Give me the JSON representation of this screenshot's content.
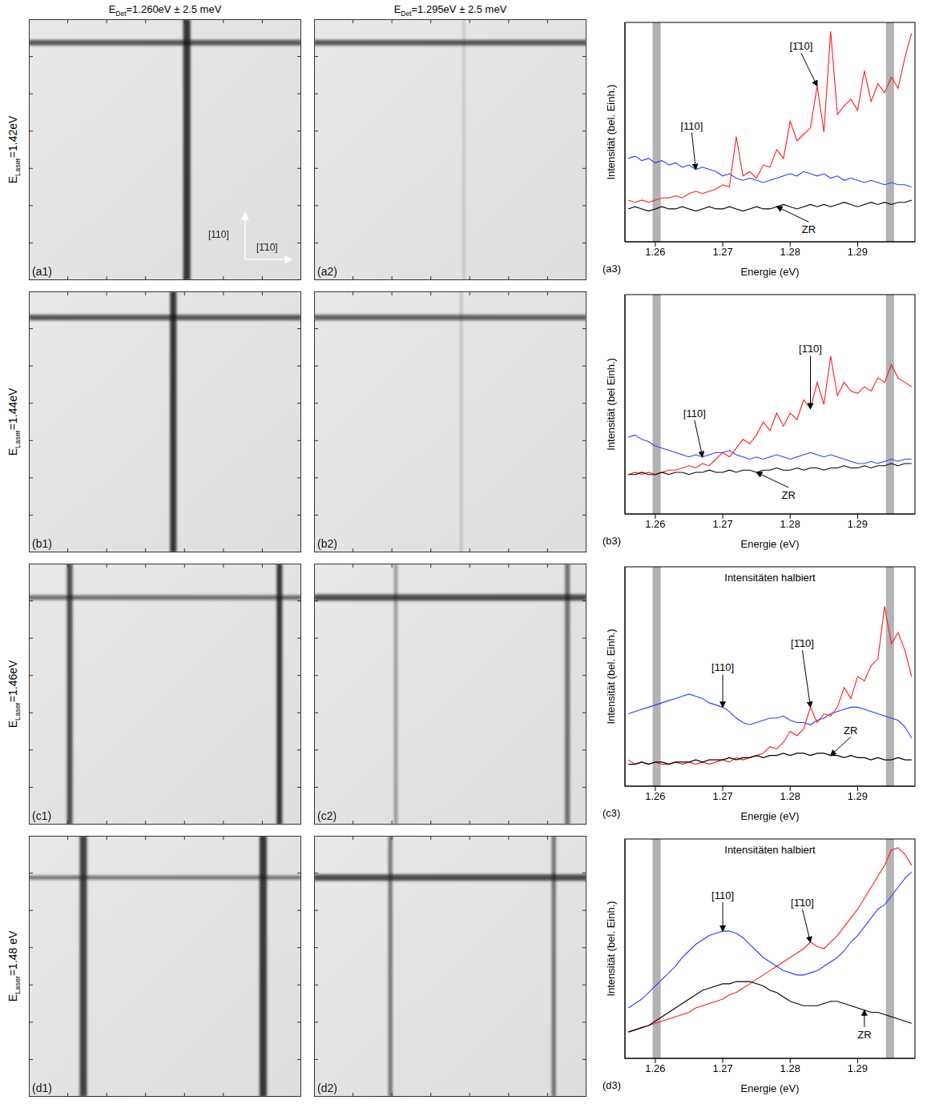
{
  "column_titles": [
    {
      "main": "E",
      "sub": "Det",
      "rest": "=1.260eV ± 2.5 meV"
    },
    {
      "main": "E",
      "sub": "Det",
      "rest": "=1.295eV ± 2.5 meV"
    }
  ],
  "row_titles": [
    {
      "main": "E",
      "sub": "Laser",
      "rest": "=1.42eV"
    },
    {
      "main": "E",
      "sub": "Laser",
      "rest": "=1.44eV"
    },
    {
      "main": "E",
      "sub": "Laser",
      "rest": "=1.46eV"
    },
    {
      "main": "E",
      "sub": "Laser",
      "rest": "=1.48 eV"
    }
  ],
  "image_panels": [
    [
      "(a1)",
      "(a2)"
    ],
    [
      "(b1)",
      "(b2)"
    ],
    [
      "(c1)",
      "(c2)"
    ],
    [
      "(d1)",
      "(d2)"
    ]
  ],
  "image_axes": {
    "vertical": "[110]",
    "horizontal": "[1̄10]"
  },
  "chart_data": [
    {
      "type": "line",
      "panel": "(a3)",
      "x_label": "Energie (eV)",
      "y_label": "Intensität (bel. Einh.)",
      "xlim": [
        1.2555,
        1.2985
      ],
      "xticks": [
        1.26,
        1.27,
        1.28,
        1.29
      ],
      "ylim": [
        0,
        10
      ],
      "tick_labels": "x",
      "highlight_bands": [
        [
          1.2596,
          1.2608
        ],
        [
          1.2942,
          1.2954
        ]
      ],
      "x": [
        1.256,
        1.257,
        1.258,
        1.259,
        1.26,
        1.261,
        1.262,
        1.263,
        1.264,
        1.265,
        1.266,
        1.267,
        1.268,
        1.269,
        1.27,
        1.271,
        1.272,
        1.273,
        1.274,
        1.275,
        1.276,
        1.277,
        1.278,
        1.279,
        1.28,
        1.281,
        1.282,
        1.283,
        1.284,
        1.285,
        1.286,
        1.287,
        1.288,
        1.289,
        1.29,
        1.291,
        1.292,
        1.293,
        1.294,
        1.295,
        1.296,
        1.297,
        1.298
      ],
      "series": [
        {
          "name": "[110]",
          "color": "#2b3cff",
          "values": [
            3.8,
            3.9,
            3.7,
            3.8,
            3.6,
            3.7,
            3.5,
            3.6,
            3.4,
            3.5,
            3.3,
            3.4,
            3.3,
            3.2,
            3.0,
            3.1,
            2.9,
            2.8,
            2.9,
            2.8,
            2.7,
            2.8,
            2.9,
            3.0,
            3.1,
            3.0,
            3.2,
            3.1,
            3.0,
            3.1,
            2.9,
            3.0,
            2.8,
            2.9,
            2.8,
            2.7,
            2.8,
            2.7,
            2.6,
            2.7,
            2.6,
            2.6,
            2.5
          ]
        },
        {
          "name": "[1̄10]",
          "color": "#ff1a1a",
          "values": [
            1.9,
            1.8,
            1.9,
            1.8,
            1.9,
            2.0,
            2.0,
            2.1,
            2.0,
            2.2,
            2.3,
            2.2,
            2.3,
            2.4,
            2.6,
            2.5,
            4.8,
            3.0,
            3.2,
            2.9,
            3.5,
            3.4,
            4.2,
            3.8,
            5.5,
            4.6,
            4.9,
            5.2,
            7.1,
            5.0,
            9.6,
            5.8,
            6.2,
            6.5,
            6.0,
            7.8,
            6.4,
            7.2,
            6.8,
            7.5,
            7.0,
            8.4,
            9.5
          ]
        },
        {
          "name": "ZR",
          "color": "#000000",
          "values": [
            1.5,
            1.6,
            1.5,
            1.4,
            1.5,
            1.6,
            1.5,
            1.5,
            1.6,
            1.5,
            1.4,
            1.5,
            1.6,
            1.5,
            1.5,
            1.6,
            1.5,
            1.4,
            1.5,
            1.6,
            1.5,
            1.5,
            1.6,
            1.7,
            1.6,
            1.5,
            1.6,
            1.7,
            1.6,
            1.7,
            1.6,
            1.7,
            1.8,
            1.7,
            1.6,
            1.7,
            1.8,
            1.7,
            1.8,
            1.7,
            1.8,
            1.8,
            1.9
          ]
        }
      ]
    },
    {
      "type": "line",
      "panel": "(b3)",
      "x_label": "Energie (eV)",
      "y_label": "Intensität (bel Einh.)",
      "xlim": [
        1.2555,
        1.2985
      ],
      "xticks": [
        1.26,
        1.27,
        1.28,
        1.29
      ],
      "ylim": [
        0,
        10
      ],
      "tick_labels": "x",
      "highlight_bands": [
        [
          1.2596,
          1.2608
        ],
        [
          1.2942,
          1.2954
        ]
      ],
      "x": [
        1.256,
        1.257,
        1.258,
        1.259,
        1.26,
        1.261,
        1.262,
        1.263,
        1.264,
        1.265,
        1.266,
        1.267,
        1.268,
        1.269,
        1.27,
        1.271,
        1.272,
        1.273,
        1.274,
        1.275,
        1.276,
        1.277,
        1.278,
        1.279,
        1.28,
        1.281,
        1.282,
        1.283,
        1.284,
        1.285,
        1.286,
        1.287,
        1.288,
        1.289,
        1.29,
        1.291,
        1.292,
        1.293,
        1.294,
        1.295,
        1.296,
        1.297,
        1.298
      ],
      "series": [
        {
          "name": "[110]",
          "color": "#2b3cff",
          "values": [
            3.5,
            3.6,
            3.4,
            3.3,
            3.1,
            3.0,
            2.9,
            2.8,
            2.7,
            2.6,
            2.7,
            2.6,
            2.7,
            2.8,
            2.8,
            2.9,
            2.7,
            2.6,
            2.5,
            2.6,
            2.5,
            2.6,
            2.7,
            2.6,
            2.5,
            2.6,
            2.7,
            2.8,
            2.7,
            2.6,
            2.7,
            2.6,
            2.5,
            2.4,
            2.3,
            2.3,
            2.4,
            2.3,
            2.4,
            2.5,
            2.4,
            2.5,
            2.5
          ]
        },
        {
          "name": "[1̄10]",
          "color": "#ff1a1a",
          "values": [
            1.8,
            1.9,
            1.8,
            1.9,
            1.8,
            1.9,
            2.0,
            2.0,
            2.1,
            2.2,
            2.1,
            2.3,
            2.2,
            2.5,
            2.8,
            2.6,
            3.0,
            3.4,
            3.2,
            3.6,
            4.2,
            3.8,
            4.6,
            4.0,
            4.6,
            4.3,
            5.2,
            4.8,
            6.0,
            5.0,
            7.2,
            5.4,
            6.0,
            5.6,
            5.5,
            5.8,
            5.6,
            6.2,
            6.0,
            6.8,
            6.2,
            6.0,
            5.8
          ]
        },
        {
          "name": "ZR",
          "color": "#000000",
          "values": [
            1.8,
            1.8,
            1.9,
            1.8,
            1.8,
            1.9,
            1.8,
            1.9,
            1.9,
            1.8,
            1.9,
            1.9,
            2.0,
            1.9,
            1.9,
            2.0,
            1.9,
            2.0,
            2.0,
            1.9,
            2.0,
            2.0,
            2.1,
            2.0,
            2.0,
            2.1,
            2.0,
            2.1,
            2.1,
            2.0,
            2.1,
            2.1,
            2.2,
            2.1,
            2.1,
            2.2,
            2.1,
            2.2,
            2.2,
            2.3,
            2.2,
            2.3,
            2.3
          ]
        }
      ]
    },
    {
      "type": "line",
      "panel": "(c3)",
      "title": "Intensitäten halbiert",
      "x_label": "Energie (eV)",
      "y_label": "Intensität (bel. Einh.)",
      "xlim": [
        1.2555,
        1.2985
      ],
      "xticks": [
        1.26,
        1.27,
        1.28,
        1.29
      ],
      "ylim": [
        0,
        10
      ],
      "tick_labels": "x",
      "highlight_bands": [
        [
          1.2596,
          1.2608
        ],
        [
          1.2942,
          1.2954
        ]
      ],
      "x": [
        1.256,
        1.257,
        1.258,
        1.259,
        1.26,
        1.261,
        1.262,
        1.263,
        1.264,
        1.265,
        1.266,
        1.267,
        1.268,
        1.269,
        1.27,
        1.271,
        1.272,
        1.273,
        1.274,
        1.275,
        1.276,
        1.277,
        1.278,
        1.279,
        1.28,
        1.281,
        1.282,
        1.283,
        1.284,
        1.285,
        1.286,
        1.287,
        1.288,
        1.289,
        1.29,
        1.291,
        1.292,
        1.293,
        1.294,
        1.295,
        1.296,
        1.297,
        1.298
      ],
      "series": [
        {
          "name": "[110]",
          "color": "#2b3cff",
          "values": [
            3.3,
            3.4,
            3.5,
            3.6,
            3.7,
            3.8,
            3.9,
            4.0,
            4.1,
            4.2,
            4.1,
            4.0,
            3.8,
            3.7,
            3.6,
            3.4,
            3.1,
            2.9,
            2.8,
            2.9,
            3.0,
            3.1,
            3.1,
            3.2,
            3.0,
            2.9,
            2.9,
            2.8,
            3.0,
            3.1,
            3.3,
            3.4,
            3.5,
            3.6,
            3.6,
            3.5,
            3.4,
            3.3,
            3.2,
            3.1,
            3.0,
            2.7,
            2.2
          ]
        },
        {
          "name": "[1̄10]",
          "color": "#ff1a1a",
          "values": [
            1.2,
            1.0,
            1.1,
            1.0,
            1.1,
            1.0,
            1.0,
            1.1,
            1.0,
            1.1,
            1.0,
            1.1,
            1.0,
            1.1,
            1.2,
            1.1,
            1.3,
            1.2,
            1.3,
            1.4,
            1.5,
            1.8,
            1.7,
            2.0,
            2.5,
            2.3,
            2.6,
            3.6,
            2.9,
            3.3,
            3.2,
            3.6,
            4.5,
            4.0,
            5.0,
            4.8,
            5.5,
            5.8,
            8.2,
            6.5,
            7.0,
            6.2,
            5.0
          ]
        },
        {
          "name": "ZR",
          "color": "#000000",
          "values": [
            1.0,
            1.0,
            1.1,
            1.0,
            1.1,
            1.1,
            1.0,
            1.1,
            1.1,
            1.1,
            1.2,
            1.1,
            1.2,
            1.2,
            1.2,
            1.3,
            1.2,
            1.3,
            1.3,
            1.4,
            1.3,
            1.4,
            1.4,
            1.5,
            1.4,
            1.5,
            1.5,
            1.4,
            1.5,
            1.5,
            1.4,
            1.4,
            1.3,
            1.4,
            1.3,
            1.3,
            1.2,
            1.3,
            1.2,
            1.2,
            1.3,
            1.2,
            1.2
          ]
        }
      ]
    },
    {
      "type": "line",
      "panel": "(d3)",
      "title": "Intensitäten halbiert",
      "x_label": "Energie (eV)",
      "y_label": "Intensität (bel. Einh.)",
      "xlim": [
        1.2555,
        1.2985
      ],
      "xticks": [
        1.26,
        1.27,
        1.28,
        1.29
      ],
      "ylim": [
        0,
        10
      ],
      "tick_labels": "x",
      "highlight_bands": [
        [
          1.2596,
          1.2608
        ],
        [
          1.2942,
          1.2954
        ]
      ],
      "x": [
        1.256,
        1.257,
        1.258,
        1.259,
        1.26,
        1.261,
        1.262,
        1.263,
        1.264,
        1.265,
        1.266,
        1.267,
        1.268,
        1.269,
        1.27,
        1.271,
        1.272,
        1.273,
        1.274,
        1.275,
        1.276,
        1.277,
        1.278,
        1.279,
        1.28,
        1.281,
        1.282,
        1.283,
        1.284,
        1.285,
        1.286,
        1.287,
        1.288,
        1.289,
        1.29,
        1.291,
        1.292,
        1.293,
        1.294,
        1.295,
        1.296,
        1.297,
        1.298
      ],
      "series": [
        {
          "name": "[110]",
          "color": "#2b3cff",
          "values": [
            2.3,
            2.5,
            2.7,
            3.0,
            3.3,
            3.6,
            3.9,
            4.2,
            4.6,
            4.9,
            5.2,
            5.4,
            5.6,
            5.7,
            5.8,
            5.8,
            5.7,
            5.5,
            5.2,
            4.9,
            4.6,
            4.4,
            4.2,
            4.0,
            3.9,
            3.8,
            3.8,
            3.9,
            4.0,
            4.2,
            4.4,
            4.6,
            4.9,
            5.3,
            5.6,
            6.0,
            6.4,
            6.8,
            7.0,
            7.4,
            7.8,
            8.2,
            8.5
          ]
        },
        {
          "name": "[1̄10]",
          "color": "#ff1a1a",
          "values": [
            1.2,
            1.3,
            1.4,
            1.5,
            1.6,
            1.7,
            1.8,
            1.9,
            2.0,
            2.1,
            2.3,
            2.4,
            2.5,
            2.6,
            2.7,
            2.9,
            3.0,
            3.2,
            3.4,
            3.6,
            3.8,
            4.0,
            4.2,
            4.4,
            4.6,
            4.8,
            5.0,
            5.3,
            5.1,
            5.0,
            5.3,
            5.6,
            6.0,
            6.4,
            6.8,
            7.3,
            7.8,
            8.3,
            8.8,
            9.5,
            9.6,
            9.3,
            8.8
          ]
        },
        {
          "name": "ZR",
          "color": "#000000",
          "values": [
            1.2,
            1.3,
            1.4,
            1.5,
            1.7,
            1.9,
            2.1,
            2.3,
            2.5,
            2.7,
            2.9,
            3.1,
            3.2,
            3.3,
            3.4,
            3.4,
            3.5,
            3.5,
            3.5,
            3.4,
            3.3,
            3.1,
            3.0,
            2.8,
            2.6,
            2.5,
            2.4,
            2.4,
            2.4,
            2.5,
            2.6,
            2.6,
            2.5,
            2.4,
            2.3,
            2.2,
            2.1,
            2.1,
            2.0,
            1.9,
            1.8,
            1.7,
            1.6
          ]
        }
      ]
    }
  ]
}
